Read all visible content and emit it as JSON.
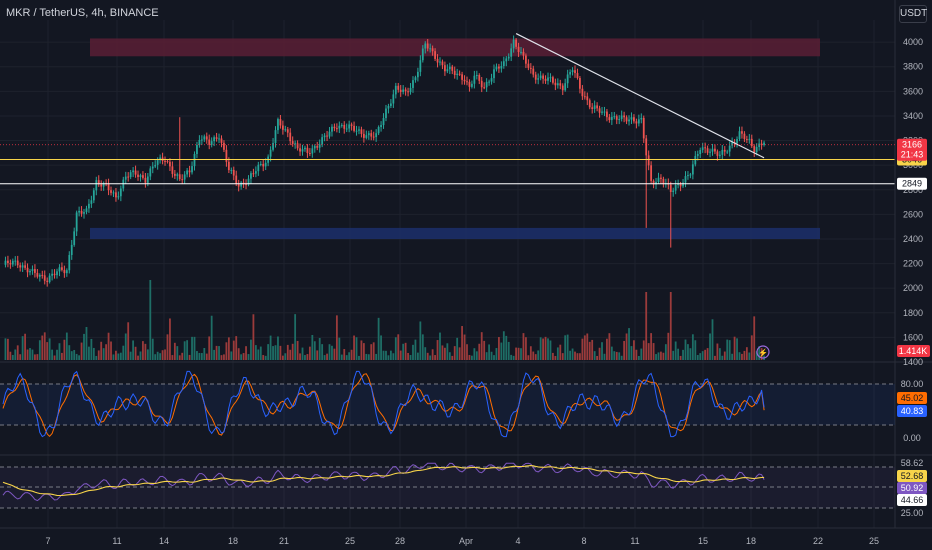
{
  "header": {
    "symbol": "MKR / TetherUS, 4h, BINANCE",
    "currency": "USDT"
  },
  "colors": {
    "background": "#131722",
    "up": "#26a69a",
    "down": "#ef5350",
    "grid": "#1e222d",
    "axis_text": "#b2b5be",
    "support_line": "#ffffff",
    "yellow_line": "#f7d44a",
    "red_zone": "#5a1f35",
    "blue_zone": "#1c2f6b",
    "stoch_k": "#2962ff",
    "stoch_d": "#ff6d00",
    "rsi": "#7e57c2",
    "rsi_ma": "#f7d44a"
  },
  "chart_data": {
    "type": "candlestick",
    "title": "MKR / TetherUS, 4h, BINANCE",
    "currency": "USDT",
    "x_ticks": [
      "7",
      "11",
      "14",
      "18",
      "21",
      "25",
      "28",
      "Apr",
      "4",
      "8",
      "11",
      "15",
      "18",
      "22",
      "25"
    ],
    "y_ticks": [
      4000,
      3800,
      3600,
      3400,
      3200,
      3000,
      2800,
      2600,
      2400,
      2200,
      2000,
      1800,
      1600,
      1400
    ],
    "ylim": [
      1400,
      4180
    ],
    "price_anchors": [
      [
        0,
        2190
      ],
      [
        6,
        2210
      ],
      [
        12,
        2120
      ],
      [
        18,
        2080
      ],
      [
        22,
        2130
      ],
      [
        26,
        2150
      ],
      [
        30,
        2600
      ],
      [
        34,
        2620
      ],
      [
        38,
        2870
      ],
      [
        42,
        2820
      ],
      [
        46,
        2740
      ],
      [
        50,
        2910
      ],
      [
        54,
        2930
      ],
      [
        58,
        2890
      ],
      [
        62,
        3010
      ],
      [
        66,
        3060
      ],
      [
        70,
        2920
      ],
      [
        72,
        2870
      ],
      [
        76,
        2960
      ],
      [
        80,
        3220
      ],
      [
        84,
        3180
      ],
      [
        88,
        3250
      ],
      [
        92,
        2960
      ],
      [
        96,
        2840
      ],
      [
        100,
        2880
      ],
      [
        104,
        2980
      ],
      [
        108,
        3060
      ],
      [
        112,
        3340
      ],
      [
        116,
        3260
      ],
      [
        120,
        3130
      ],
      [
        124,
        3100
      ],
      [
        128,
        3170
      ],
      [
        132,
        3240
      ],
      [
        136,
        3330
      ],
      [
        140,
        3310
      ],
      [
        144,
        3280
      ],
      [
        148,
        3250
      ],
      [
        152,
        3230
      ],
      [
        156,
        3450
      ],
      [
        160,
        3620
      ],
      [
        164,
        3580
      ],
      [
        168,
        3720
      ],
      [
        172,
        3980
      ],
      [
        176,
        3890
      ],
      [
        180,
        3780
      ],
      [
        184,
        3750
      ],
      [
        188,
        3710
      ],
      [
        190,
        3620
      ],
      [
        192,
        3720
      ],
      [
        196,
        3640
      ],
      [
        200,
        3760
      ],
      [
        204,
        3820
      ],
      [
        208,
        4010
      ],
      [
        212,
        3860
      ],
      [
        216,
        3740
      ],
      [
        220,
        3700
      ],
      [
        224,
        3680
      ],
      [
        228,
        3640
      ],
      [
        232,
        3780
      ],
      [
        236,
        3590
      ],
      [
        240,
        3460
      ],
      [
        244,
        3430
      ],
      [
        248,
        3390
      ],
      [
        252,
        3370
      ],
      [
        256,
        3380
      ],
      [
        260,
        3360
      ],
      [
        262,
        3080
      ],
      [
        264,
        2860
      ],
      [
        268,
        2900
      ],
      [
        272,
        2780
      ],
      [
        276,
        2860
      ],
      [
        280,
        2940
      ],
      [
        284,
        3140
      ],
      [
        288,
        3130
      ],
      [
        292,
        3070
      ],
      [
        296,
        3160
      ],
      [
        300,
        3250
      ],
      [
        304,
        3190
      ],
      [
        306,
        3140
      ],
      [
        308,
        3166
      ]
    ],
    "wick_events": [
      {
        "index": 262,
        "low": 2490
      },
      {
        "index": 272,
        "low": 2330
      },
      {
        "index": 72,
        "high": 3390
      }
    ],
    "volume": {
      "last": "1.414K"
    },
    "price_levels": [
      {
        "value": 3046,
        "label": "3046",
        "color": "#f7d44a"
      },
      {
        "value": 2849,
        "label": "2849",
        "color": "#ffffff"
      }
    ],
    "current_price": {
      "value": "3166",
      "countdown": "21:43"
    },
    "zones": [
      {
        "name": "resistance",
        "from": 3885,
        "to": 4030,
        "color": "#5a1f35"
      },
      {
        "name": "support",
        "from": 2400,
        "to": 2490,
        "color": "#1c2f6b"
      }
    ],
    "trendline": {
      "from": {
        "index": 209,
        "value": 4070
      },
      "to": {
        "index": 310,
        "value": 3060
      }
    },
    "stoch": {
      "levels": [
        "80.00",
        "0.00"
      ],
      "values": {
        "k": "45.02",
        "d": "40.83"
      },
      "k_last": 45.02,
      "d_last": 40.83
    },
    "rsi": {
      "levels": [
        "58.62",
        "25.00"
      ],
      "values": [
        "52.68",
        "50.92",
        "44.66"
      ],
      "rsi_last": 50.92,
      "ma_last": 52.68
    }
  }
}
